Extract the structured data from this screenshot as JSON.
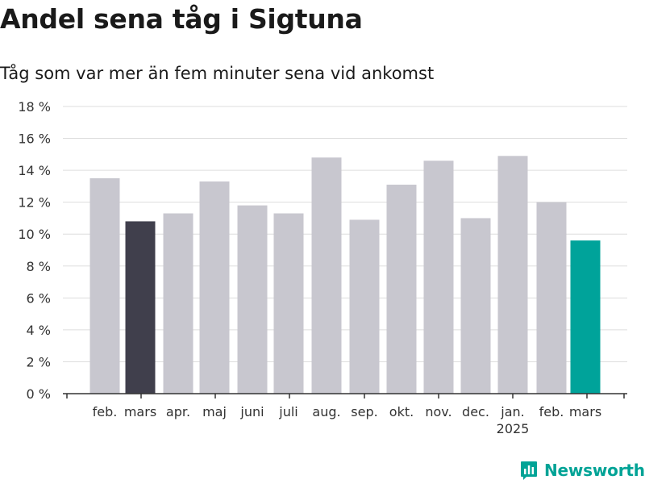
{
  "header": {
    "title": "Andel sena tåg i Sigtuna",
    "subtitle": "Tåg som var mer än fem minuter sena vid ankomst"
  },
  "brand": {
    "name": "Newsworthy",
    "color": "#00a396"
  },
  "colors": {
    "bar_default": "#c8c7cf",
    "bar_prev_year": "#403f4c",
    "bar_current": "#00a39a",
    "grid": "#dddddd"
  },
  "chart_data": {
    "type": "bar",
    "title": "Andel sena tåg i Sigtuna",
    "subtitle": "Tåg som var mer än fem minuter sena vid ankomst",
    "xlabel": "",
    "ylabel": "",
    "ylim": [
      0,
      18
    ],
    "yticks": [
      0,
      2,
      4,
      6,
      8,
      10,
      12,
      14,
      16,
      18
    ],
    "ytick_labels": [
      "0 %",
      "2 %",
      "4 %",
      "6 %",
      "8 %",
      "10 %",
      "12 %",
      "14 %",
      "16 %",
      "18 %"
    ],
    "categories": [
      "feb.",
      "mars",
      "apr.",
      "maj",
      "juni",
      "juli",
      "aug.",
      "sep.",
      "okt.",
      "nov.",
      "dec.",
      "jan.",
      "feb.",
      "mars"
    ],
    "year_label": {
      "category_index": 11,
      "text": "2025"
    },
    "values": [
      13.5,
      10.8,
      11.3,
      13.3,
      11.8,
      11.3,
      14.8,
      10.9,
      13.1,
      14.6,
      11.0,
      14.9,
      12.0,
      9.6
    ],
    "highlight": {
      "prev_year_index": 1,
      "current_index": 13
    },
    "grid": true,
    "legend": "none"
  }
}
